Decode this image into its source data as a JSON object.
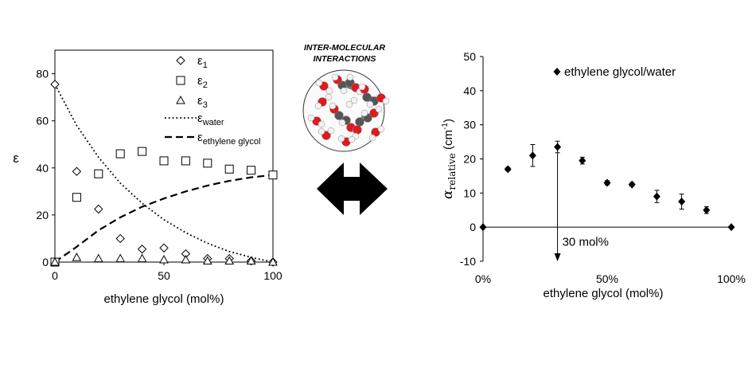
{
  "chart_data": [
    {
      "type": "scatter",
      "xlabel": "ethylene glycol (mol%)",
      "ylabel": "ε",
      "xlim": [
        0,
        100
      ],
      "ylim": [
        0,
        90
      ],
      "xticks": [
        "0",
        "50",
        "100"
      ],
      "yticks": [
        "0",
        "20",
        "40",
        "60",
        "80"
      ],
      "legend_position": "top-right",
      "grid": false,
      "series": [
        {
          "name_base": "ε",
          "name_sub": "1",
          "marker": "diamond",
          "x": [
            0,
            10,
            20,
            30,
            40,
            50,
            60,
            70,
            80,
            90,
            100
          ],
          "y": [
            75.5,
            38.5,
            22.5,
            10,
            5.5,
            6,
            3.5,
            1.5,
            1.5,
            0.5,
            0
          ]
        },
        {
          "name_base": "ε",
          "name_sub": "2",
          "marker": "square",
          "x": [
            0,
            10,
            20,
            30,
            40,
            50,
            60,
            70,
            80,
            90,
            100
          ],
          "y": [
            0,
            27.5,
            37.5,
            46,
            47,
            43,
            43,
            42,
            39.5,
            39,
            37
          ]
        },
        {
          "name_base": "ε",
          "name_sub": "3",
          "marker": "triangle",
          "x": [
            0,
            10,
            20,
            30,
            40,
            50,
            60,
            70,
            80,
            90,
            100
          ],
          "y": [
            0,
            2,
            1.5,
            1.5,
            1.5,
            1,
            1,
            0.5,
            0.5,
            0.5,
            0
          ]
        },
        {
          "name_base": "ε",
          "name_sub": "water",
          "line": "dotted",
          "x": [
            0,
            10,
            20,
            30,
            40,
            50,
            60,
            70,
            80,
            90,
            100
          ],
          "y": [
            75.5,
            58,
            44.5,
            33.5,
            25,
            18,
            12.5,
            8,
            4.5,
            2,
            0
          ]
        },
        {
          "name_base": "ε",
          "name_sub": "ethylene glycol",
          "line": "dashed",
          "x": [
            0,
            10,
            20,
            30,
            40,
            50,
            60,
            70,
            80,
            90,
            100
          ],
          "y": [
            0,
            6.5,
            13.5,
            19,
            23.5,
            27,
            30,
            32.5,
            34.5,
            36,
            37
          ]
        }
      ]
    },
    {
      "type": "scatter",
      "xlabel": "ethylene glycol (mol%)",
      "ylabel_symbol": "α",
      "ylabel_sub": "relative",
      "ylabel_unit": " (cm",
      "ylabel_sup": "-1",
      "ylabel_close": ")",
      "xlim": [
        0,
        100
      ],
      "ylim": [
        -10,
        50
      ],
      "xticks": [
        "0%",
        "50%",
        "100%"
      ],
      "yticks": [
        "-10",
        "0",
        "10",
        "20",
        "30",
        "40",
        "50"
      ],
      "legend_position": "top-right",
      "grid": false,
      "series": [
        {
          "name": "ethylene glycol/water",
          "marker": "filled-diamond",
          "x": [
            0,
            10,
            20,
            30,
            40,
            50,
            60,
            70,
            80,
            90,
            100
          ],
          "y": [
            0,
            17,
            21,
            23.5,
            19.5,
            13,
            12.5,
            9,
            7.5,
            5,
            0
          ],
          "err": [
            0,
            0.5,
            3.2,
            1.7,
            1,
            0.6,
            0.5,
            1.8,
            2.2,
            1,
            0
          ]
        }
      ],
      "annotation": {
        "text": "30 mol%",
        "x": 30,
        "y_from": 23.5,
        "y_to": -10
      }
    }
  ],
  "center": {
    "title_line1": "INTER-MOLECULAR",
    "title_line2": "INTERACTIONS"
  },
  "colors": {
    "ink": "#000000",
    "oxygen": "#e0191e",
    "carbon": "#555555",
    "hydrogen": "#f2f2f2"
  }
}
